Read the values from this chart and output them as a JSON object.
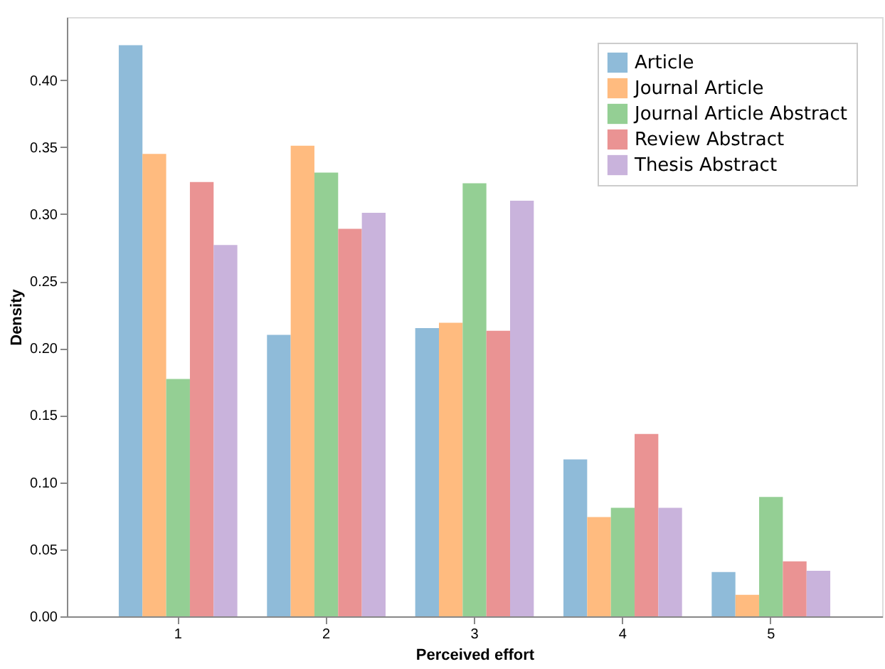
{
  "chart_data": {
    "type": "bar",
    "xlabel": "Perceived effort",
    "ylabel": "Density",
    "categories": [
      "1",
      "2",
      "3",
      "4",
      "5"
    ],
    "series": [
      {
        "name": "Article",
        "color": "#8fbbd9",
        "values": [
          0.426,
          0.21,
          0.215,
          0.117,
          0.033
        ]
      },
      {
        "name": "Journal Article",
        "color": "#ffbb7f",
        "values": [
          0.345,
          0.351,
          0.219,
          0.074,
          0.016
        ]
      },
      {
        "name": "Journal Article Abstract",
        "color": "#94cf94",
        "values": [
          0.177,
          0.331,
          0.323,
          0.081,
          0.089
        ]
      },
      {
        "name": "Review Abstract",
        "color": "#ea9393",
        "values": [
          0.324,
          0.289,
          0.213,
          0.136,
          0.041
        ]
      },
      {
        "name": "Thesis Abstract",
        "color": "#c9b3dc",
        "values": [
          0.277,
          0.301,
          0.31,
          0.081,
          0.034
        ]
      }
    ],
    "ylim": [
      0,
      0.447
    ],
    "yticks": [
      {
        "value": 0,
        "label": "0.00"
      },
      0.05,
      {
        "value": 0.1,
        "label": "0.10"
      },
      0.15,
      {
        "value": 0.2,
        "label": "0.20"
      },
      0.25,
      {
        "value": 0.3,
        "label": "0.30"
      },
      0.35,
      {
        "value": 0.4,
        "label": "0.40"
      }
    ],
    "grid": false,
    "legend": "top right"
  }
}
